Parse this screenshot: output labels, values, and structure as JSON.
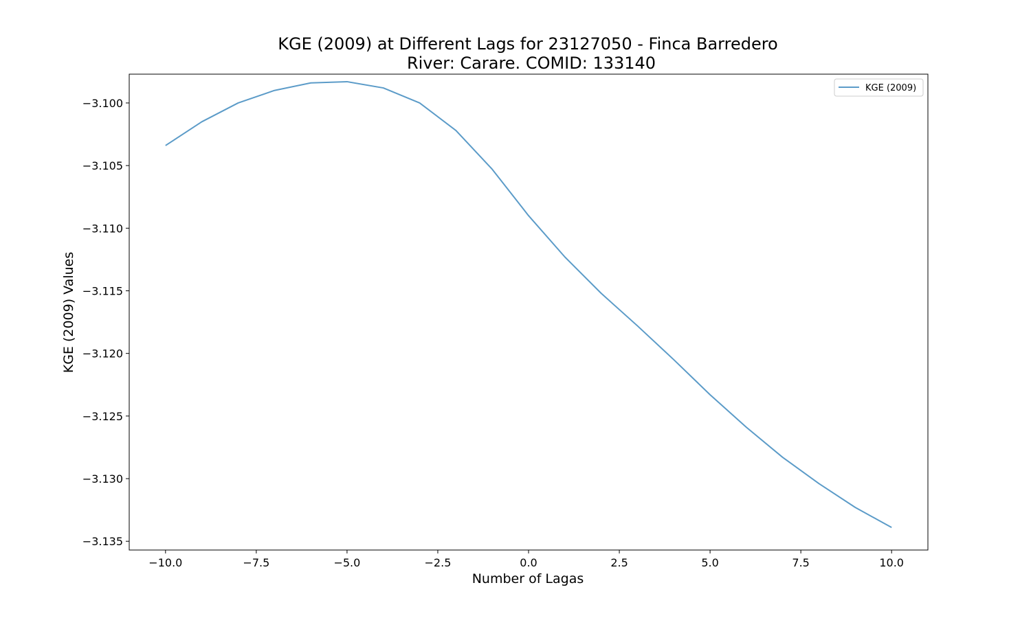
{
  "chart_data": {
    "type": "line",
    "title": "KGE (2009) at Different Lags for 23127050 - Finca Barredero",
    "subtitle": "River: Carare. COMID: 133140",
    "xlabel": "Number of Lagas",
    "ylabel": "KGE (2009) Values",
    "xlim": [
      -11,
      11
    ],
    "ylim": [
      -3.1357,
      -3.0977
    ],
    "xticks": [
      -10.0,
      -7.5,
      -5.0,
      -2.5,
      0.0,
      2.5,
      5.0,
      7.5,
      10.0
    ],
    "xtick_labels": [
      "−10.0",
      "−7.5",
      "−5.0",
      "−2.5",
      "0.0",
      "2.5",
      "5.0",
      "7.5",
      "10.0"
    ],
    "yticks": [
      -3.1,
      -3.105,
      -3.11,
      -3.115,
      -3.12,
      -3.125,
      -3.13,
      -3.135
    ],
    "ytick_labels": [
      "−3.100",
      "−3.105",
      "−3.110",
      "−3.115",
      "−3.120",
      "−3.125",
      "−3.130",
      "−3.135"
    ],
    "grid": false,
    "legend": "top-right",
    "series": [
      {
        "name": "KGE (2009)",
        "color": "#5b9bc8",
        "x": [
          -10,
          -9,
          -8,
          -7,
          -6,
          -5,
          -4,
          -3,
          -2,
          -1,
          0,
          1,
          2,
          3,
          4,
          5,
          6,
          7,
          8,
          9,
          10
        ],
        "y": [
          -3.1034,
          -3.1015,
          -3.1,
          -3.099,
          -3.0984,
          -3.0983,
          -3.0988,
          -3.1,
          -3.1022,
          -3.1053,
          -3.109,
          -3.1123,
          -3.1152,
          -3.1178,
          -3.1205,
          -3.1233,
          -3.1259,
          -3.1283,
          -3.1304,
          -3.1323,
          -3.1339
        ]
      }
    ]
  }
}
